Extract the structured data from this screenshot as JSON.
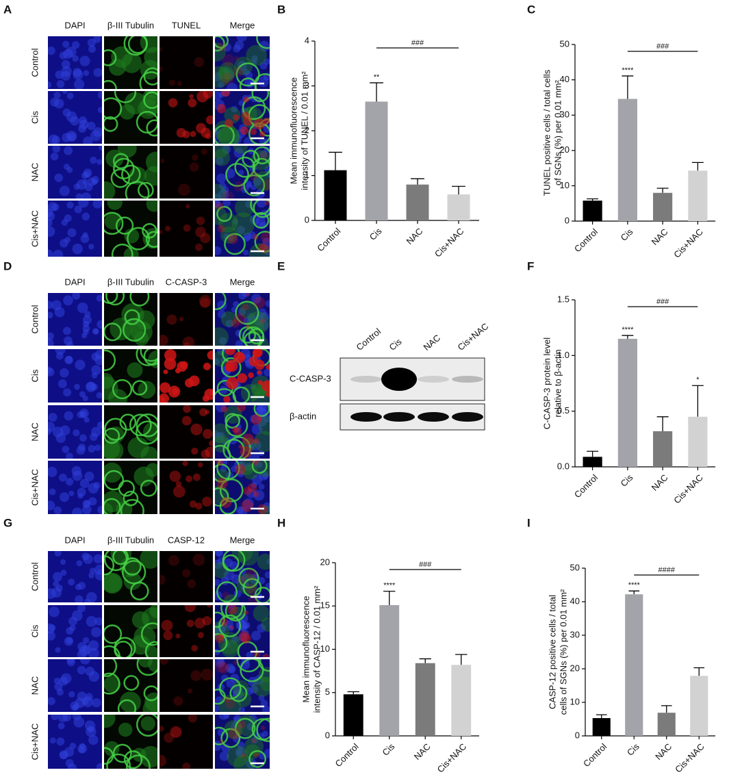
{
  "image_panels": [
    {
      "letter": "A",
      "columns": [
        "DAPI",
        "β-III Tubulin",
        "TUNEL",
        "Merge"
      ],
      "rows": [
        "Control",
        "Cis",
        "NAC",
        "Cis+NAC"
      ]
    },
    {
      "letter": "D",
      "columns": [
        "DAPI",
        "β-III Tubulin",
        "C-CASP-3",
        "Merge"
      ],
      "rows": [
        "Control",
        "Cis",
        "NAC",
        "Cis+NAC"
      ]
    },
    {
      "letter": "G",
      "columns": [
        "DAPI",
        "β-III Tubulin",
        "CASP-12",
        "Merge"
      ],
      "rows": [
        "Control",
        "Cis",
        "NAC",
        "Cis+NAC"
      ]
    }
  ],
  "blot": {
    "letter": "E",
    "lanes": [
      "Control",
      "Cis",
      "NAC",
      "Cis+NAC"
    ],
    "rows": [
      "C-CASP-3",
      "β-actin"
    ]
  },
  "chart_data": [
    {
      "type": "bar",
      "letter": "B",
      "ylabel": [
        "Mean immunofluorescence",
        "intensity of TUNEL / 0.01 mm²"
      ],
      "categories": [
        "Control",
        "Cis",
        "NAC",
        "Cis+NAC"
      ],
      "values": [
        1.12,
        2.65,
        0.8,
        0.58
      ],
      "errors": [
        0.4,
        0.42,
        0.13,
        0.18
      ],
      "colors": [
        "#000000",
        "#a3a3aa",
        "#7b7b7b",
        "#d2d2d2"
      ],
      "significance": [
        null,
        "**",
        null,
        null
      ],
      "bracket_label": "###",
      "ylim": [
        0,
        4
      ],
      "yticks": [
        0,
        1,
        2,
        3,
        4
      ]
    },
    {
      "type": "bar",
      "letter": "C",
      "ylabel": [
        "TUNEL positive cells / total cells",
        "of SGNs (%) per 0.01 mm²"
      ],
      "categories": [
        "Control",
        "Cis",
        "NAC",
        "Cis+NAC"
      ],
      "values": [
        5.8,
        34.6,
        8,
        14.3
      ],
      "errors": [
        0.5,
        6.5,
        1.3,
        2.3
      ],
      "colors": [
        "#000000",
        "#a3a3aa",
        "#7b7b7b",
        "#d2d2d2"
      ],
      "significance": [
        null,
        "****",
        null,
        null
      ],
      "bracket_label": "###",
      "ylim": [
        0,
        50
      ],
      "yticks": [
        0,
        10,
        20,
        30,
        40,
        50
      ]
    },
    {
      "type": "bar",
      "letter": "F",
      "ylabel": [
        "C-CASP-3 protein level",
        "relative to β-actin"
      ],
      "categories": [
        "Control",
        "Cis",
        "NAC",
        "Cis+NAC"
      ],
      "values": [
        0.09,
        1.15,
        0.32,
        0.45
      ],
      "errors": [
        0.05,
        0.03,
        0.13,
        0.28
      ],
      "colors": [
        "#000000",
        "#a3a3aa",
        "#7b7b7b",
        "#d2d2d2"
      ],
      "significance": [
        null,
        "****",
        null,
        "*"
      ],
      "bracket_label": "###",
      "ylim": [
        0,
        1.5
      ],
      "yticks": [
        {
          "value": 0,
          "label": "0.0"
        },
        0.5,
        {
          "value": 1,
          "label": "1.0"
        },
        1.5
      ]
    },
    {
      "type": "bar",
      "letter": "H",
      "ylabel": [
        "Mean immunofluorescence",
        "intensity of CASP-12 / 0.01 mm²"
      ],
      "categories": [
        "Control",
        "Cis",
        "NAC",
        "Cis+NAC"
      ],
      "values": [
        4.8,
        15.1,
        8.4,
        8.2
      ],
      "errors": [
        0.3,
        1.6,
        0.5,
        1.2
      ],
      "colors": [
        "#000000",
        "#a3a3aa",
        "#7b7b7b",
        "#d2d2d2"
      ],
      "significance": [
        null,
        "****",
        null,
        null
      ],
      "bracket_label": "###",
      "ylim": [
        0,
        20
      ],
      "yticks": [
        0,
        5,
        10,
        15,
        20
      ]
    },
    {
      "type": "bar",
      "letter": "I",
      "ylabel": [
        "CASP-12 positive cells / total",
        "cells of SGNs (%) per 0.01 mm²"
      ],
      "categories": [
        "Control",
        "Cis",
        "NAC",
        "Cis+NAC"
      ],
      "values": [
        5.3,
        42.2,
        6.9,
        17.9
      ],
      "errors": [
        1,
        1,
        2.1,
        2.4
      ],
      "colors": [
        "#000000",
        "#a3a3aa",
        "#7b7b7b",
        "#d2d2d2"
      ],
      "significance": [
        null,
        "****",
        null,
        null
      ],
      "bracket_label": "####",
      "ylim": [
        0,
        50
      ],
      "yticks": [
        0,
        10,
        20,
        30,
        40,
        50
      ]
    }
  ]
}
